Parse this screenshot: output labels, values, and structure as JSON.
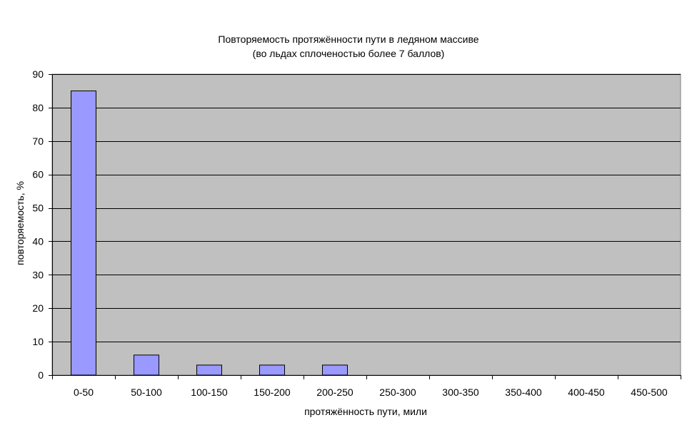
{
  "chart_data": {
    "type": "bar",
    "title": "Повторяемость протяжённости пути в ледяном массиве",
    "subtitle": "(во льдах сплоченостью более 7 баллов)",
    "xlabel": "протяжённость пути, мили",
    "ylabel": "повторяемость, %",
    "categories": [
      "0-50",
      "50-100",
      "100-150",
      "150-200",
      "200-250",
      "250-300",
      "300-350",
      "350-400",
      "400-450",
      "450-500"
    ],
    "values": [
      85,
      6,
      3,
      3,
      3,
      0,
      0,
      0,
      0,
      0
    ],
    "ylim": [
      0,
      90
    ],
    "yticks": [
      0,
      10,
      20,
      30,
      40,
      50,
      60,
      70,
      80,
      90
    ],
    "grid": true,
    "legend": "none",
    "colors": {
      "plot_background": "#c0c0c0",
      "bar_fill": "#9999ff",
      "bar_stroke": "#000000",
      "gridline": "#000000"
    }
  }
}
